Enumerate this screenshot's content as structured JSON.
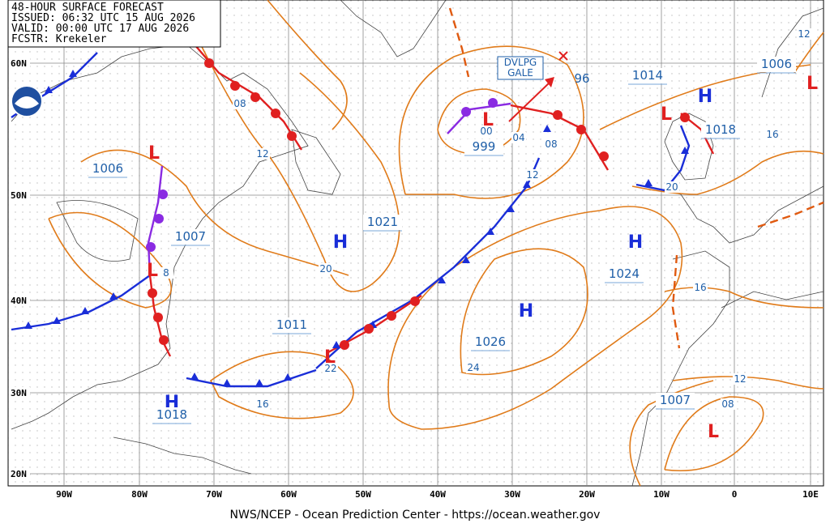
{
  "header": {
    "lines": [
      "48-HOUR SURFACE FORECAST",
      "ISSUED: 06:32 UTC 15 AUG 2026",
      "VALID:  00:00 UTC 17 AUG 2026",
      "FCSTR:  Krekeler"
    ]
  },
  "grid": {
    "lat_labels": [
      "60N",
      "50N",
      "40N",
      "30N",
      "20N"
    ],
    "lon_labels": [
      "90W",
      "80W",
      "70W",
      "60W",
      "50W",
      "40W",
      "30W",
      "20W",
      "10W",
      "0",
      "10E"
    ]
  },
  "centers": [
    {
      "type": "L",
      "pressure": "1006"
    },
    {
      "type": "L",
      "pressure": "1007"
    },
    {
      "type": "L",
      "pressure": "1011"
    },
    {
      "type": "H",
      "pressure": "1021"
    },
    {
      "type": "H",
      "pressure": "1026"
    },
    {
      "type": "H",
      "pressure": "1024"
    },
    {
      "type": "H",
      "pressure": "1018"
    },
    {
      "type": "L",
      "pressure": "999"
    },
    {
      "type": "L",
      "pressure": "1014"
    },
    {
      "type": "H",
      "pressure": "1018"
    },
    {
      "type": "L",
      "pressure": "1006"
    },
    {
      "type": "L",
      "pressure": "1007"
    }
  ],
  "other_pressure_label": "96",
  "isobar_labels": [
    "08",
    "12",
    "20",
    "8",
    "16",
    "22",
    "24",
    "04",
    "08",
    "12",
    "00",
    "20",
    "16",
    "16",
    "12",
    "12",
    "08"
  ],
  "annotation": [
    "DVLPG",
    "GALE"
  ],
  "footer": "NWS/NCEP - Ocean Prediction Center - https://ocean.weather.gov"
}
